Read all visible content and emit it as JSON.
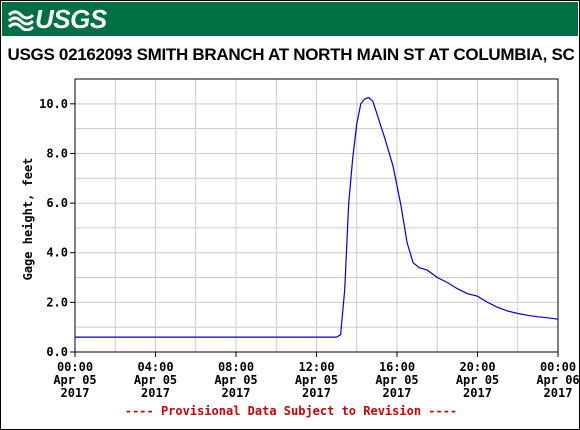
{
  "banner": {
    "logo_text": "USGS",
    "background_color": "#006f41"
  },
  "chart_data": {
    "type": "line",
    "title": "USGS 02162093 SMITH BRANCH AT NORTH MAIN ST AT COLUMBIA, SC",
    "ylabel": "Gage height, feet",
    "xlabel": "",
    "xlim": [
      0,
      24
    ],
    "ylim": [
      0,
      11
    ],
    "grid": true,
    "y_ticks": [
      {
        "value": 0,
        "label": "0.0"
      },
      {
        "value": 2,
        "label": "2.0"
      },
      {
        "value": 4,
        "label": "4.0"
      },
      {
        "value": 6,
        "label": "6.0"
      },
      {
        "value": 8,
        "label": "8.0"
      },
      {
        "value": 10,
        "label": "10.0"
      }
    ],
    "x_ticks": [
      {
        "value": 0,
        "time": "00:00",
        "date": "Apr 05",
        "year": "2017"
      },
      {
        "value": 4,
        "time": "04:00",
        "date": "Apr 05",
        "year": "2017"
      },
      {
        "value": 8,
        "time": "08:00",
        "date": "Apr 05",
        "year": "2017"
      },
      {
        "value": 12,
        "time": "12:00",
        "date": "Apr 05",
        "year": "2017"
      },
      {
        "value": 16,
        "time": "16:00",
        "date": "Apr 05",
        "year": "2017"
      },
      {
        "value": 20,
        "time": "20:00",
        "date": "Apr 05",
        "year": "2017"
      },
      {
        "value": 24,
        "time": "00:00",
        "date": "Apr 06",
        "year": "2017"
      }
    ],
    "series": [
      {
        "color": "#0000cc",
        "x": [
          0,
          13,
          13.2,
          13.4,
          13.6,
          13.8,
          14.0,
          14.2,
          14.4,
          14.6,
          14.8,
          15.0,
          15.4,
          15.8,
          16.2,
          16.5,
          16.8,
          17.1,
          17.5,
          18.0,
          18.5,
          19.0,
          19.5,
          20.0,
          20.5,
          21.0,
          21.5,
          22.0,
          22.5,
          23.0,
          23.5,
          24.0
        ],
        "y": [
          0.6,
          0.6,
          0.7,
          2.5,
          6.0,
          7.8,
          9.2,
          10.0,
          10.2,
          10.25,
          10.1,
          9.6,
          8.6,
          7.5,
          5.9,
          4.4,
          3.6,
          3.4,
          3.3,
          3.0,
          2.8,
          2.55,
          2.35,
          2.25,
          2.0,
          1.8,
          1.65,
          1.55,
          1.48,
          1.42,
          1.38,
          1.32
        ]
      }
    ],
    "footnote": "---- Provisional Data Subject to Revision ----"
  }
}
